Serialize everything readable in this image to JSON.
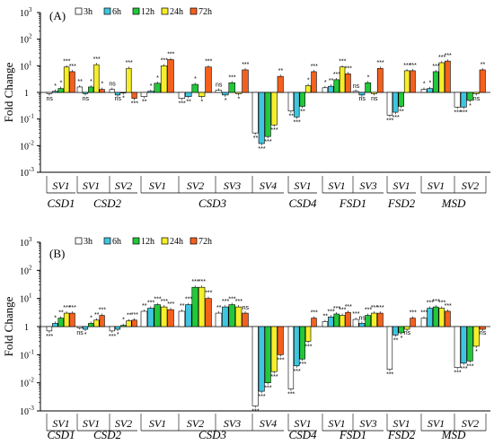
{
  "colors": {
    "3h": "#ffffff",
    "6h": "#3ec6e0",
    "12h": "#22c83a",
    "24h": "#f6ee2a",
    "72h": "#f4601d"
  },
  "chart_data": [
    {
      "type": "bar",
      "panel_label": "(A)",
      "ylabel": "Fold Change",
      "yscale": "log",
      "ylim": [
        0.001,
        1000
      ],
      "y_ticks": [
        "10",
        "10",
        "10",
        "1",
        "10",
        "10",
        "10"
      ],
      "y_tick_exps": [
        "3",
        "2",
        "1",
        "",
        "-1",
        "-2",
        "-3"
      ],
      "legend": [
        "3h",
        "6h",
        "12h",
        "24h",
        "72h"
      ],
      "groups": [
        {
          "sv": "SV1",
          "values": [
            0.9,
            1.1,
            1.4,
            9,
            6
          ]
        },
        {
          "sv": "SV1",
          "values": [
            1.6,
            0.9,
            1.6,
            11,
            1.3
          ]
        },
        {
          "sv": "SV2",
          "values": [
            1.3,
            0.8,
            0.95,
            8,
            0.6
          ]
        },
        {
          "sv": "SV1",
          "values": [
            0.7,
            1.1,
            2.2,
            10,
            17
          ]
        },
        {
          "sv": "SV2",
          "values": [
            0.6,
            0.7,
            2,
            0.7,
            9
          ]
        },
        {
          "sv": "SV3",
          "values": [
            1.2,
            0.8,
            2.3,
            0.9,
            7
          ]
        },
        {
          "sv": "SV4",
          "values": [
            0.03,
            0.012,
            0.022,
            0.06,
            4
          ]
        },
        {
          "sv": "SV1",
          "values": [
            0.2,
            0.12,
            0.3,
            1.8,
            6
          ]
        },
        {
          "sv": "SV1",
          "values": [
            1.5,
            1.7,
            3,
            9,
            5
          ]
        },
        {
          "sv": "SV3",
          "values": [
            1.1,
            0.8,
            2.3,
            0.9,
            8
          ]
        },
        {
          "sv": "SV1",
          "values": [
            0.14,
            0.18,
            0.3,
            6.5,
            6.5
          ]
        },
        {
          "sv": "SV1",
          "values": [
            1.3,
            1.4,
            6,
            13,
            15
          ]
        },
        {
          "sv": "SV2",
          "values": [
            0.28,
            0.28,
            0.5,
            0.9,
            7
          ]
        }
      ],
      "genes": [
        {
          "name": "CSD1",
          "span": [
            0,
            0
          ]
        },
        {
          "name": "CSD2",
          "span": [
            1,
            2
          ]
        },
        {
          "name": "CSD3",
          "span": [
            3,
            6
          ]
        },
        {
          "name": "CSD4",
          "span": [
            7,
            7
          ]
        },
        {
          "name": "FSD1",
          "span": [
            8,
            9
          ]
        },
        {
          "name": "FSD2",
          "span": [
            10,
            10
          ]
        },
        {
          "name": "MSD",
          "span": [
            11,
            12
          ]
        }
      ],
      "annotations": [
        {
          "group": 0,
          "bar": 0,
          "text": "ns"
        },
        {
          "group": 0,
          "bar": 1,
          "text": "*"
        },
        {
          "group": 0,
          "bar": 2,
          "text": "*"
        },
        {
          "group": 0,
          "bar": 3,
          "text": "***"
        },
        {
          "group": 0,
          "bar": 4,
          "text": "***"
        },
        {
          "group": 1,
          "bar": 0,
          "text": "**"
        },
        {
          "group": 1,
          "bar": 1,
          "text": "ns"
        },
        {
          "group": 1,
          "bar": 2,
          "text": "*"
        },
        {
          "group": 1,
          "bar": 3,
          "text": "***"
        },
        {
          "group": 1,
          "bar": 4,
          "text": "*"
        },
        {
          "group": 2,
          "bar": 0,
          "text": "ns"
        },
        {
          "group": 2,
          "bar": 1,
          "text": "ns"
        },
        {
          "group": 2,
          "bar": 2,
          "text": "*"
        },
        {
          "group": 2,
          "bar": 3,
          "text": "***"
        },
        {
          "group": 2,
          "bar": 4,
          "text": "***"
        },
        {
          "group": 3,
          "bar": 0,
          "text": "**"
        },
        {
          "group": 3,
          "bar": 1,
          "text": "*"
        },
        {
          "group": 3,
          "bar": 2,
          "text": "*"
        },
        {
          "group": 3,
          "bar": 3,
          "text": "***"
        },
        {
          "group": 3,
          "bar": 4,
          "text": "***"
        },
        {
          "group": 4,
          "bar": 0,
          "text": "***"
        },
        {
          "group": 4,
          "bar": 1,
          "text": "**"
        },
        {
          "group": 4,
          "bar": 2,
          "text": "*"
        },
        {
          "group": 4,
          "bar": 3,
          "text": "*"
        },
        {
          "group": 4,
          "bar": 4,
          "text": "***"
        },
        {
          "group": 5,
          "bar": 0,
          "text": "ns"
        },
        {
          "group": 5,
          "bar": 1,
          "text": "*"
        },
        {
          "group": 5,
          "bar": 2,
          "text": "***"
        },
        {
          "group": 5,
          "bar": 3,
          "text": "*"
        },
        {
          "group": 5,
          "bar": 4,
          "text": "***"
        },
        {
          "group": 6,
          "bar": 0,
          "text": "**"
        },
        {
          "group": 6,
          "bar": 1,
          "text": "***"
        },
        {
          "group": 6,
          "bar": 2,
          "text": "***"
        },
        {
          "group": 6,
          "bar": 3,
          "text": "***"
        },
        {
          "group": 6,
          "bar": 4,
          "text": "**"
        },
        {
          "group": 7,
          "bar": 0,
          "text": "**"
        },
        {
          "group": 7,
          "bar": 1,
          "text": "***"
        },
        {
          "group": 7,
          "bar": 2,
          "text": "**"
        },
        {
          "group": 7,
          "bar": 3,
          "text": "*"
        },
        {
          "group": 7,
          "bar": 4,
          "text": "***"
        },
        {
          "group": 8,
          "bar": 0,
          "text": "*"
        },
        {
          "group": 8,
          "bar": 1,
          "text": "**"
        },
        {
          "group": 8,
          "bar": 2,
          "text": "***"
        },
        {
          "group": 8,
          "bar": 3,
          "text": "***"
        },
        {
          "group": 8,
          "bar": 4,
          "text": "***"
        },
        {
          "group": 9,
          "bar": 0,
          "text": "ns"
        },
        {
          "group": 9,
          "bar": 1,
          "text": "ns"
        },
        {
          "group": 9,
          "bar": 2,
          "text": "*"
        },
        {
          "group": 9,
          "bar": 3,
          "text": "ns"
        },
        {
          "group": 9,
          "bar": 4,
          "text": "***"
        },
        {
          "group": 10,
          "bar": 0,
          "text": "***"
        },
        {
          "group": 10,
          "bar": 1,
          "text": "***"
        },
        {
          "group": 10,
          "bar": 2,
          "text": "**"
        },
        {
          "group": 10,
          "bar": 3,
          "text": "***"
        },
        {
          "group": 10,
          "bar": 4,
          "text": "***"
        },
        {
          "group": 11,
          "bar": 0,
          "text": "*"
        },
        {
          "group": 11,
          "bar": 1,
          "text": "*"
        },
        {
          "group": 11,
          "bar": 2,
          "text": "***"
        },
        {
          "group": 11,
          "bar": 3,
          "text": "***"
        },
        {
          "group": 11,
          "bar": 4,
          "text": "***"
        },
        {
          "group": 12,
          "bar": 0,
          "text": "***"
        },
        {
          "group": 12,
          "bar": 1,
          "text": "***"
        },
        {
          "group": 12,
          "bar": 2,
          "text": "*"
        },
        {
          "group": 12,
          "bar": 3,
          "text": "ns"
        },
        {
          "group": 12,
          "bar": 4,
          "text": "**"
        }
      ]
    },
    {
      "type": "bar",
      "panel_label": "(B)",
      "ylabel": "Fold Change",
      "yscale": "log",
      "ylim": [
        0.001,
        1000
      ],
      "y_ticks": [
        "10",
        "10",
        "10",
        "1",
        "10",
        "10",
        "10"
      ],
      "y_tick_exps": [
        "3",
        "2",
        "1",
        "",
        "-1",
        "-2",
        "-3"
      ],
      "legend": [
        "3h",
        "6h",
        "12h",
        "24h",
        "72h"
      ],
      "groups": [
        {
          "sv": "SV1",
          "values": [
            0.7,
            1.3,
            2,
            3,
            3
          ]
        },
        {
          "sv": "SV1",
          "values": [
            0.9,
            0.8,
            1.3,
            1.7,
            2.5
          ]
        },
        {
          "sv": "SV2",
          "values": [
            0.7,
            0.8,
            1.1,
            1.6,
            1.7
          ]
        },
        {
          "sv": "SV1",
          "values": [
            3.5,
            4.5,
            6,
            5,
            4
          ]
        },
        {
          "sv": "SV2",
          "values": [
            3.5,
            6,
            25,
            25,
            10
          ]
        },
        {
          "sv": "SV3",
          "values": [
            3,
            5,
            6,
            5,
            3
          ]
        },
        {
          "sv": "SV4",
          "values": [
            0.0015,
            0.005,
            0.01,
            0.025,
            0.1
          ]
        },
        {
          "sv": "SV1",
          "values": [
            0.006,
            0.04,
            0.07,
            0.3,
            2
          ]
        },
        {
          "sv": "SV1",
          "values": [
            1.5,
            2.2,
            2.8,
            2.5,
            3.2
          ]
        },
        {
          "sv": "SV3",
          "values": [
            1.8,
            1.3,
            2.5,
            3,
            3
          ]
        },
        {
          "sv": "SV1",
          "values": [
            0.03,
            0.5,
            0.6,
            0.8,
            2
          ]
        },
        {
          "sv": "SV1",
          "values": [
            2,
            4.5,
            5,
            4.5,
            3.5
          ]
        },
        {
          "sv": "SV2",
          "values": [
            0.035,
            0.05,
            0.06,
            0.2,
            0.8
          ]
        }
      ],
      "genes": [
        {
          "name": "CSD1",
          "span": [
            0,
            0
          ]
        },
        {
          "name": "CSD2",
          "span": [
            1,
            2
          ]
        },
        {
          "name": "CSD3",
          "span": [
            3,
            6
          ]
        },
        {
          "name": "CSD4",
          "span": [
            7,
            7
          ]
        },
        {
          "name": "FSD1",
          "span": [
            8,
            9
          ]
        },
        {
          "name": "FSD2",
          "span": [
            10,
            10
          ]
        },
        {
          "name": "MSD",
          "span": [
            11,
            12
          ]
        }
      ],
      "annotations": [
        {
          "group": 0,
          "bar": 0,
          "text": "***"
        },
        {
          "group": 0,
          "bar": 1,
          "text": "*"
        },
        {
          "group": 0,
          "bar": 2,
          "text": "**"
        },
        {
          "group": 0,
          "bar": 3,
          "text": "***"
        },
        {
          "group": 0,
          "bar": 4,
          "text": "***"
        },
        {
          "group": 1,
          "bar": 0,
          "text": "ns"
        },
        {
          "group": 1,
          "bar": 1,
          "text": "*"
        },
        {
          "group": 1,
          "bar": 2,
          "text": "*"
        },
        {
          "group": 1,
          "bar": 3,
          "text": "**"
        },
        {
          "group": 1,
          "bar": 4,
          "text": "***"
        },
        {
          "group": 2,
          "bar": 0,
          "text": "***"
        },
        {
          "group": 2,
          "bar": 1,
          "text": "*"
        },
        {
          "group": 2,
          "bar": 2,
          "text": "*"
        },
        {
          "group": 2,
          "bar": 3,
          "text": "**"
        },
        {
          "group": 2,
          "bar": 4,
          "text": "***"
        },
        {
          "group": 3,
          "bar": 0,
          "text": "**"
        },
        {
          "group": 3,
          "bar": 1,
          "text": "***"
        },
        {
          "group": 3,
          "bar": 2,
          "text": "***"
        },
        {
          "group": 3,
          "bar": 3,
          "text": "***"
        },
        {
          "group": 3,
          "bar": 4,
          "text": "***"
        },
        {
          "group": 4,
          "bar": 0,
          "text": "**"
        },
        {
          "group": 4,
          "bar": 1,
          "text": "***"
        },
        {
          "group": 4,
          "bar": 2,
          "text": "***"
        },
        {
          "group": 4,
          "bar": 3,
          "text": "***"
        },
        {
          "group": 4,
          "bar": 4,
          "text": "***"
        },
        {
          "group": 5,
          "bar": 0,
          "text": "**"
        },
        {
          "group": 5,
          "bar": 1,
          "text": "***"
        },
        {
          "group": 5,
          "bar": 2,
          "text": "***"
        },
        {
          "group": 5,
          "bar": 3,
          "text": "***"
        },
        {
          "group": 5,
          "bar": 4,
          "text": "ns"
        },
        {
          "group": 6,
          "bar": 0,
          "text": "***"
        },
        {
          "group": 6,
          "bar": 1,
          "text": "***"
        },
        {
          "group": 6,
          "bar": 2,
          "text": "***"
        },
        {
          "group": 6,
          "bar": 3,
          "text": "***"
        },
        {
          "group": 6,
          "bar": 4,
          "text": "***"
        },
        {
          "group": 7,
          "bar": 0,
          "text": "***"
        },
        {
          "group": 7,
          "bar": 1,
          "text": "***"
        },
        {
          "group": 7,
          "bar": 2,
          "text": "***"
        },
        {
          "group": 7,
          "bar": 3,
          "text": "***"
        },
        {
          "group": 7,
          "bar": 4,
          "text": "***"
        },
        {
          "group": 8,
          "bar": 0,
          "text": "**"
        },
        {
          "group": 8,
          "bar": 1,
          "text": "***"
        },
        {
          "group": 8,
          "bar": 2,
          "text": "***"
        },
        {
          "group": 8,
          "bar": 3,
          "text": "***"
        },
        {
          "group": 8,
          "bar": 4,
          "text": "***"
        },
        {
          "group": 9,
          "bar": 0,
          "text": "***"
        },
        {
          "group": 9,
          "bar": 1,
          "text": "ns"
        },
        {
          "group": 9,
          "bar": 2,
          "text": "***"
        },
        {
          "group": 9,
          "bar": 3,
          "text": "***"
        },
        {
          "group": 9,
          "bar": 4,
          "text": "***"
        },
        {
          "group": 10,
          "bar": 0,
          "text": "***"
        },
        {
          "group": 10,
          "bar": 1,
          "text": "**"
        },
        {
          "group": 10,
          "bar": 2,
          "text": "*"
        },
        {
          "group": 10,
          "bar": 3,
          "text": "ns"
        },
        {
          "group": 10,
          "bar": 4,
          "text": "***"
        },
        {
          "group": 11,
          "bar": 0,
          "text": "***"
        },
        {
          "group": 11,
          "bar": 1,
          "text": "***"
        },
        {
          "group": 11,
          "bar": 2,
          "text": "***"
        },
        {
          "group": 11,
          "bar": 3,
          "text": "***"
        },
        {
          "group": 11,
          "bar": 4,
          "text": "***"
        },
        {
          "group": 12,
          "bar": 0,
          "text": "***"
        },
        {
          "group": 12,
          "bar": 1,
          "text": "***"
        },
        {
          "group": 12,
          "bar": 2,
          "text": "***"
        },
        {
          "group": 12,
          "bar": 3,
          "text": "*"
        },
        {
          "group": 12,
          "bar": 4,
          "text": "ns"
        }
      ]
    }
  ]
}
